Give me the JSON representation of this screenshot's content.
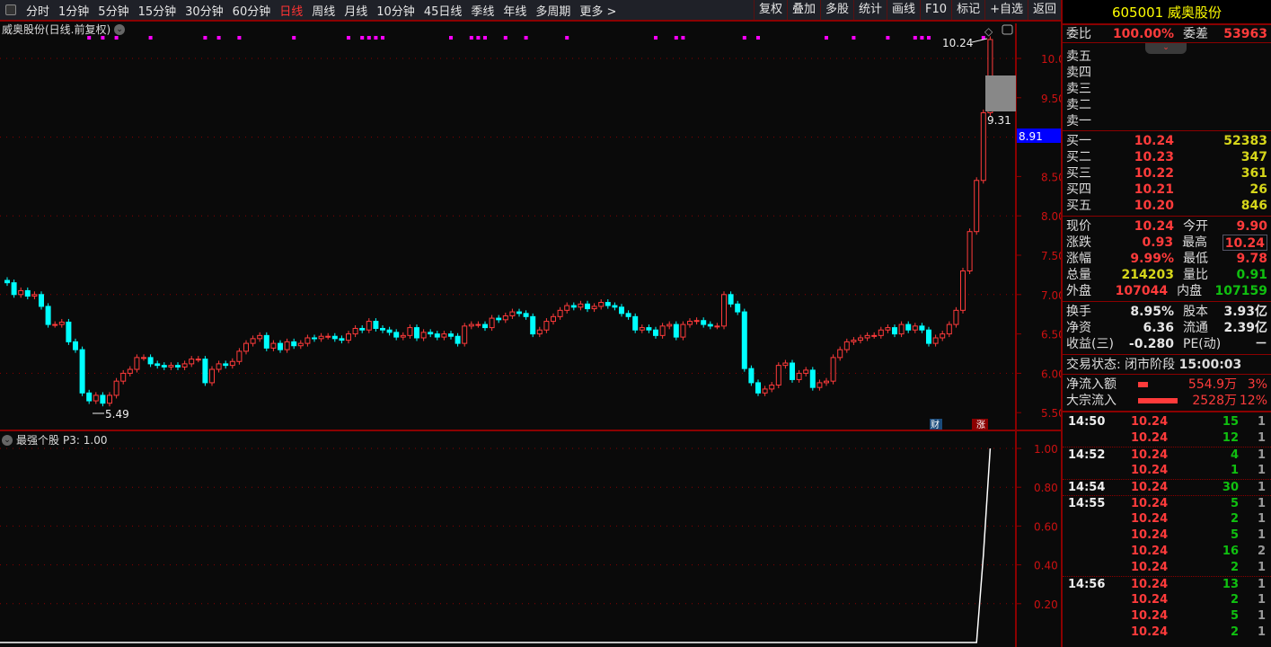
{
  "toolbar": {
    "periods": [
      "分时",
      "1分钟",
      "5分钟",
      "15分钟",
      "30分钟",
      "60分钟",
      "日线",
      "周线",
      "月线",
      "10分钟",
      "45日线",
      "季线",
      "年线",
      "多周期",
      "更多 >"
    ],
    "active": "日线",
    "right_buttons": [
      "复权",
      "叠加",
      "多股",
      "统计",
      "画线",
      "F10",
      "标记",
      "+自选",
      "返回"
    ]
  },
  "chart": {
    "title": "威奥股份(日线.前复权)",
    "indicator_title": "最强个股",
    "indicator_value": "P3: 1.00",
    "high_label": "10.24",
    "low_label": "5.49",
    "gap_label": "9.31",
    "price_tag": "8.91",
    "badges": {
      "cai": "财",
      "zhang": "涨"
    },
    "colors": {
      "up": "#ff3b3b",
      "down": "#00ffff",
      "signal": "#ff00ff",
      "tag": "#0000ff"
    }
  },
  "chart_data": {
    "type": "candlestick",
    "y_ticks": [
      "10.00",
      "9.50",
      "9.00",
      "8.50",
      "8.00",
      "7.50",
      "7.00",
      "6.50",
      "6.00",
      "5.50"
    ],
    "ylim": [
      5.4,
      10.4
    ],
    "closes": [
      7.15,
      7.0,
      7.05,
      6.98,
      7.0,
      6.85,
      6.62,
      6.62,
      6.65,
      6.4,
      6.3,
      5.75,
      5.65,
      5.72,
      5.62,
      5.72,
      5.9,
      6.0,
      6.05,
      6.2,
      6.2,
      6.12,
      6.1,
      6.08,
      6.1,
      6.08,
      6.12,
      6.18,
      6.18,
      5.88,
      6.05,
      6.12,
      6.1,
      6.15,
      6.28,
      6.38,
      6.44,
      6.48,
      6.32,
      6.38,
      6.3,
      6.4,
      6.35,
      6.38,
      6.45,
      6.44,
      6.47,
      6.47,
      6.44,
      6.42,
      6.5,
      6.57,
      6.55,
      6.66,
      6.57,
      6.55,
      6.52,
      6.46,
      6.48,
      6.58,
      6.45,
      6.52,
      6.5,
      6.46,
      6.5,
      6.47,
      6.38,
      6.6,
      6.62,
      6.62,
      6.58,
      6.7,
      6.68,
      6.73,
      6.78,
      6.76,
      6.72,
      6.5,
      6.55,
      6.66,
      6.72,
      6.8,
      6.86,
      6.84,
      6.88,
      6.82,
      6.85,
      6.9,
      6.86,
      6.84,
      6.76,
      6.72,
      6.55,
      6.58,
      6.55,
      6.48,
      6.6,
      6.62,
      6.46,
      6.62,
      6.66,
      6.67,
      6.62,
      6.6,
      6.6,
      7.0,
      6.88,
      6.78,
      6.06,
      5.88,
      5.75,
      5.8,
      5.85,
      6.1,
      6.13,
      5.92,
      6.0,
      6.04,
      5.82,
      5.88,
      5.9,
      6.2,
      6.3,
      6.4,
      6.42,
      6.45,
      6.48,
      6.48,
      6.55,
      6.58,
      6.5,
      6.62,
      6.55,
      6.6,
      6.55,
      6.38,
      6.45,
      6.5,
      6.62,
      6.8,
      7.3,
      7.8,
      8.45,
      9.31,
      10.24
    ],
    "signal_days": [
      12,
      14,
      16,
      21,
      29,
      31,
      34,
      42,
      50,
      52,
      53,
      54,
      55,
      65,
      68,
      69,
      70,
      73,
      76,
      82,
      95,
      98,
      99,
      108,
      110,
      120,
      124,
      129,
      133,
      134,
      135,
      143
    ],
    "indicator": {
      "y_ticks": [
        "1.00",
        "0.80",
        "0.60",
        "0.40",
        "0.20"
      ],
      "ylim": [
        0,
        1.05
      ],
      "last_values": [
        0,
        0.45,
        1.0
      ]
    }
  },
  "panel": {
    "code": "605001",
    "name": "威奥股份",
    "weibi": {
      "label": "委比",
      "value": "100.00%",
      "label2": "委差",
      "value2": "53963"
    },
    "sell": [
      {
        "label": "卖五"
      },
      {
        "label": "卖四"
      },
      {
        "label": "卖三"
      },
      {
        "label": "卖二"
      },
      {
        "label": "卖一"
      }
    ],
    "buy": [
      {
        "label": "买一",
        "price": "10.24",
        "vol": "52383"
      },
      {
        "label": "买二",
        "price": "10.23",
        "vol": "347"
      },
      {
        "label": "买三",
        "price": "10.22",
        "vol": "361"
      },
      {
        "label": "买四",
        "price": "10.21",
        "vol": "26"
      },
      {
        "label": "买五",
        "price": "10.20",
        "vol": "846"
      }
    ],
    "quote": [
      {
        "l1": "现价",
        "v1": "10.24",
        "c1": "red",
        "l2": "今开",
        "v2": "9.90",
        "c2": "red"
      },
      {
        "l1": "涨跌",
        "v1": "0.93",
        "c1": "red",
        "l2": "最高",
        "v2": "10.24",
        "c2": "red"
      },
      {
        "l1": "涨幅",
        "v1": "9.99%",
        "c1": "red",
        "l2": "最低",
        "v2": "9.78",
        "c2": "red"
      },
      {
        "l1": "总量",
        "v1": "214203",
        "c1": "yel",
        "l2": "量比",
        "v2": "0.91",
        "c2": "grn"
      },
      {
        "l1": "外盘",
        "v1": "107044",
        "c1": "red",
        "l2": "内盘",
        "v2": "107159",
        "c2": "grn"
      }
    ],
    "fund": [
      {
        "l1": "换手",
        "v1": "8.95%",
        "l2": "股本",
        "v2": "3.93亿"
      },
      {
        "l1": "净资",
        "v1": "6.36",
        "l2": "流通",
        "v2": "2.39亿"
      },
      {
        "l1": "收益(三)",
        "v1": "-0.280",
        "l2": "PE(动)",
        "v2": "－"
      }
    ],
    "status": "交易状态: 闭市阶段",
    "status_time": "15:00:03",
    "flows": [
      {
        "label": "净流入额",
        "value": "554.9万",
        "pct": "3%",
        "bar": 0.25
      },
      {
        "label": "大宗流入",
        "value": "2528万",
        "pct": "12%",
        "bar": 1.0
      }
    ],
    "ticks": [
      {
        "time": "14:50",
        "price": "10.24",
        "vol": "15",
        "n": "1"
      },
      {
        "time": "",
        "price": "10.24",
        "vol": "12",
        "n": "1"
      },
      {
        "time": "14:52",
        "price": "10.24",
        "vol": "4",
        "n": "1"
      },
      {
        "time": "",
        "price": "10.24",
        "vol": "1",
        "n": "1"
      },
      {
        "time": "14:54",
        "price": "10.24",
        "vol": "30",
        "n": "1"
      },
      {
        "time": "14:55",
        "price": "10.24",
        "vol": "5",
        "n": "1"
      },
      {
        "time": "",
        "price": "10.24",
        "vol": "2",
        "n": "1"
      },
      {
        "time": "",
        "price": "10.24",
        "vol": "5",
        "n": "1"
      },
      {
        "time": "",
        "price": "10.24",
        "vol": "16",
        "n": "2"
      },
      {
        "time": "",
        "price": "10.24",
        "vol": "2",
        "n": "1"
      },
      {
        "time": "14:56",
        "price": "10.24",
        "vol": "13",
        "n": "1"
      },
      {
        "time": "",
        "price": "10.24",
        "vol": "2",
        "n": "1"
      },
      {
        "time": "",
        "price": "10.24",
        "vol": "5",
        "n": "1"
      },
      {
        "time": "",
        "price": "10.24",
        "vol": "2",
        "n": "1"
      }
    ]
  }
}
